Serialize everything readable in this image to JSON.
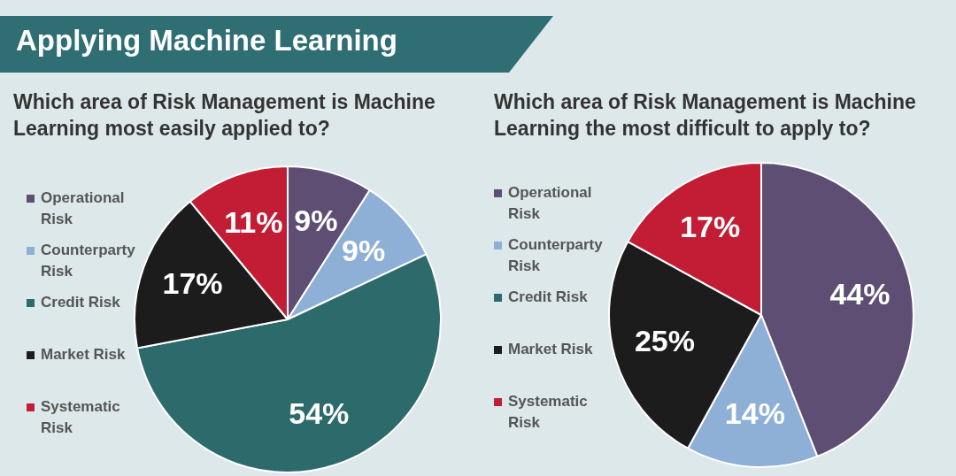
{
  "chart_data": [
    {
      "type": "pie",
      "title": "Applying Machine Learning",
      "subtitle": "Which area of Risk Management is Machine Learning most easily applied to?",
      "categories": [
        "Operational Risk",
        "Counterparty Risk",
        "Credit Risk",
        "Market Risk",
        "Systematic Risk"
      ],
      "values": [
        9,
        9,
        54,
        17,
        11
      ],
      "value_labels": [
        "9%",
        "9%",
        "54%",
        "17%",
        "11%"
      ],
      "colors": [
        "#5e4e73",
        "#8fb0d6",
        "#2d6a6b",
        "#1c1c1c",
        "#c21d34"
      ],
      "legend": "left"
    },
    {
      "type": "pie",
      "title": "Which area of Risk Management is Machine Learning the most difficult to apply to?",
      "categories": [
        "Operational Risk",
        "Counterparty Risk",
        "Credit Risk",
        "Market Risk",
        "Systematic Risk"
      ],
      "values": [
        44,
        14,
        0,
        25,
        17
      ],
      "value_labels": [
        "44%",
        "14%",
        null,
        "25%",
        "17%"
      ],
      "colors": [
        "#5e4e73",
        "#8fb0d6",
        "#2d6a6b",
        "#1c1c1c",
        "#c21d34"
      ],
      "legend": "left"
    }
  ]
}
